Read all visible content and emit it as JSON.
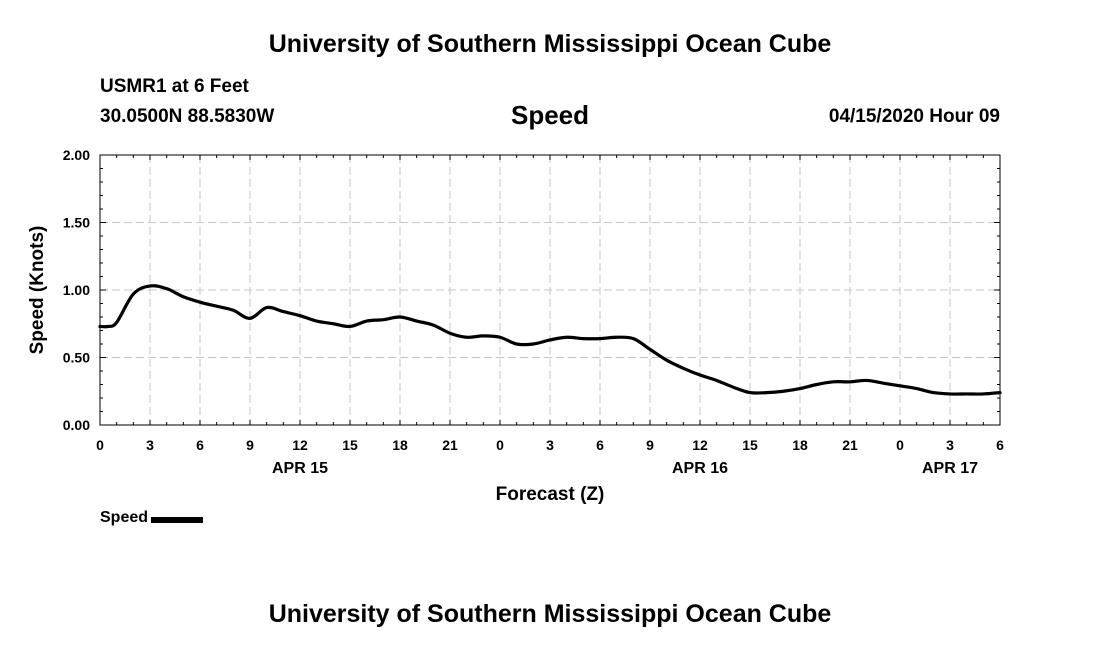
{
  "header": {
    "title": "University of Southern Mississippi Ocean Cube",
    "station": "USMR1 at 6 Feet",
    "coordinates": "30.0500N 88.5830W",
    "variable": "Speed",
    "datetime": "04/15/2020 Hour 09"
  },
  "footer": {
    "title": "University of Southern Mississippi Ocean Cube"
  },
  "legend": {
    "label": "Speed",
    "color": "#000000"
  },
  "chart_data": {
    "type": "line",
    "title": "Speed",
    "xlabel": "Forecast (Z)",
    "ylabel": "Speed (Knots)",
    "xlim": [
      0,
      54
    ],
    "ylim": [
      0,
      2
    ],
    "grid": true,
    "y_ticks": [
      "0.00",
      "0.50",
      "1.00",
      "1.50",
      "2.00"
    ],
    "y_tick_values": [
      0,
      0.5,
      1.0,
      1.5,
      2.0
    ],
    "x_tick_labels": [
      "0",
      "3",
      "6",
      "9",
      "12",
      "15",
      "18",
      "21",
      "0",
      "3",
      "6",
      "9",
      "12",
      "15",
      "18",
      "21",
      "0",
      "3",
      "6"
    ],
    "date_labels": [
      {
        "text": "APR 15",
        "hour": 12
      },
      {
        "text": "APR 16",
        "hour": 36
      },
      {
        "text": "APR 17",
        "hour": 51
      }
    ],
    "series": [
      {
        "name": "Speed",
        "color": "#000000",
        "x": [
          0,
          0.5,
          1,
          2,
          3,
          4,
          5,
          6,
          7,
          8,
          9,
          10,
          11,
          12,
          13,
          14,
          15,
          16,
          17,
          18,
          19,
          20,
          21,
          22,
          23,
          24,
          25,
          26,
          27,
          28,
          29,
          30,
          31,
          32,
          33,
          34,
          35,
          36,
          37,
          38,
          39,
          40,
          41,
          42,
          43,
          44,
          45,
          46,
          47,
          48,
          49,
          50,
          51,
          52,
          53,
          54
        ],
        "values": [
          0.73,
          0.73,
          0.76,
          0.97,
          1.03,
          1.01,
          0.95,
          0.91,
          0.88,
          0.85,
          0.79,
          0.87,
          0.84,
          0.81,
          0.77,
          0.75,
          0.73,
          0.77,
          0.78,
          0.8,
          0.77,
          0.74,
          0.68,
          0.65,
          0.66,
          0.65,
          0.6,
          0.6,
          0.63,
          0.65,
          0.64,
          0.64,
          0.65,
          0.64,
          0.56,
          0.48,
          0.42,
          0.37,
          0.33,
          0.28,
          0.24,
          0.24,
          0.25,
          0.27,
          0.3,
          0.32,
          0.32,
          0.33,
          0.31,
          0.29,
          0.27,
          0.24,
          0.23,
          0.23,
          0.23,
          0.24
        ]
      }
    ]
  }
}
